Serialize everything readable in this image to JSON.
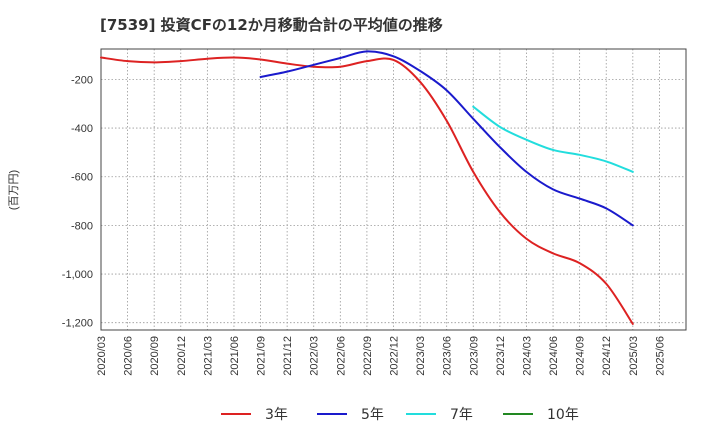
{
  "chart_data": {
    "type": "line",
    "title": "[7539]  投資CFの12か月移動合計の平均値の推移",
    "ylabel": "(百万円)",
    "xlabel": "",
    "ylim": [
      -1230,
      -75
    ],
    "y_ticks": [
      {
        "value": -200,
        "label": "-200"
      },
      {
        "value": -400,
        "label": "-400"
      },
      {
        "value": -600,
        "label": "-600"
      },
      {
        "value": -800,
        "label": "-800"
      },
      {
        "value": -1000,
        "label": "-1,000"
      },
      {
        "value": -1200,
        "label": "-1,200"
      }
    ],
    "x_ticks": [
      "2020/03",
      "2020/06",
      "2020/09",
      "2020/12",
      "2021/03",
      "2021/06",
      "2021/09",
      "2021/12",
      "2022/03",
      "2022/06",
      "2022/09",
      "2022/12",
      "2023/03",
      "2023/06",
      "2023/09",
      "2023/12",
      "2024/03",
      "2024/06",
      "2024/09",
      "2024/12",
      "2025/03",
      "2025/06"
    ],
    "grid": true,
    "legend_position": "bottom",
    "series": [
      {
        "name": "3年",
        "color": "#dd2222",
        "points": [
          [
            "2020/03",
            -110
          ],
          [
            "2020/06",
            -125
          ],
          [
            "2020/09",
            -130
          ],
          [
            "2020/12",
            -125
          ],
          [
            "2021/03",
            -115
          ],
          [
            "2021/06",
            -110
          ],
          [
            "2021/09",
            -118
          ],
          [
            "2021/12",
            -135
          ],
          [
            "2022/03",
            -148
          ],
          [
            "2022/06",
            -148
          ],
          [
            "2022/09",
            -125
          ],
          [
            "2022/12",
            -120
          ],
          [
            "2023/03",
            -210
          ],
          [
            "2023/06",
            -370
          ],
          [
            "2023/09",
            -580
          ],
          [
            "2023/12",
            -745
          ],
          [
            "2024/03",
            -855
          ],
          [
            "2024/06",
            -915
          ],
          [
            "2024/09",
            -955
          ],
          [
            "2024/12",
            -1040
          ],
          [
            "2025/03",
            -1205
          ]
        ]
      },
      {
        "name": "5年",
        "color": "#1a1acc",
        "points": [
          [
            "2021/09",
            -190
          ],
          [
            "2021/12",
            -168
          ],
          [
            "2022/03",
            -140
          ],
          [
            "2022/06",
            -112
          ],
          [
            "2022/09",
            -85
          ],
          [
            "2022/12",
            -105
          ],
          [
            "2023/03",
            -165
          ],
          [
            "2023/06",
            -245
          ],
          [
            "2023/09",
            -362
          ],
          [
            "2023/12",
            -478
          ],
          [
            "2024/03",
            -580
          ],
          [
            "2024/06",
            -652
          ],
          [
            "2024/09",
            -690
          ],
          [
            "2024/12",
            -730
          ],
          [
            "2025/03",
            -800
          ]
        ]
      },
      {
        "name": "7年",
        "color": "#22dddd",
        "points": [
          [
            "2023/09",
            -312
          ],
          [
            "2023/12",
            -395
          ],
          [
            "2024/03",
            -448
          ],
          [
            "2024/06",
            -490
          ],
          [
            "2024/09",
            -510
          ],
          [
            "2024/12",
            -537
          ],
          [
            "2025/03",
            -580
          ]
        ]
      },
      {
        "name": "10年",
        "color": "#228822",
        "points": []
      }
    ]
  }
}
